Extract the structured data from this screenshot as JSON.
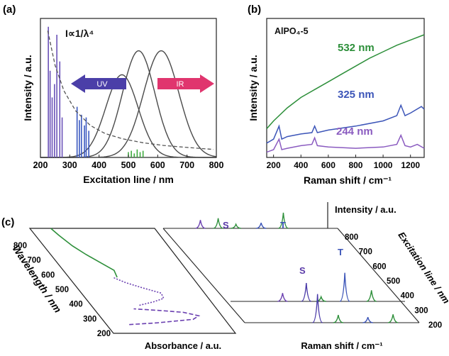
{
  "chart_data": [
    {
      "panel": "(a)",
      "type": "line",
      "xlabel": "Excitation line / nm",
      "ylabel": "Intensity / a.u.",
      "xlim": [
        200,
        800
      ],
      "xticks": [
        200,
        300,
        400,
        500,
        600,
        700,
        800
      ],
      "annotations": {
        "formula": "I∝1/λ⁴",
        "uv": "UV",
        "ir": "IR"
      },
      "dashed_curve": {
        "x": [
          225,
          250,
          280,
          320,
          370,
          420,
          480,
          550,
          620,
          700,
          790
        ],
        "y": [
          0.95,
          0.69,
          0.5,
          0.35,
          0.24,
          0.18,
          0.14,
          0.11,
          0.09,
          0.075,
          0.06
        ]
      },
      "gaussian_bands": [
        {
          "center": 478,
          "width": 55,
          "height": 0.62
        },
        {
          "center": 535,
          "width": 55,
          "height": 0.8
        },
        {
          "center": 612,
          "width": 60,
          "height": 0.8
        }
      ],
      "spectral_lines": [
        {
          "x": 227,
          "h": 0.98,
          "color": "#6a52b8"
        },
        {
          "x": 233,
          "h": 0.65,
          "color": "#6a52b8"
        },
        {
          "x": 240,
          "h": 0.45,
          "color": "#6a52b8"
        },
        {
          "x": 248,
          "h": 0.55,
          "color": "#6a52b8"
        },
        {
          "x": 256,
          "h": 0.92,
          "color": "#6a52b8"
        },
        {
          "x": 266,
          "h": 0.72,
          "color": "#6a52b8"
        },
        {
          "x": 274,
          "h": 0.3,
          "color": "#6a52b8"
        },
        {
          "x": 325,
          "h": 0.38,
          "color": "#3a58c0"
        },
        {
          "x": 333,
          "h": 0.28,
          "color": "#3a58c0"
        },
        {
          "x": 340,
          "h": 0.32,
          "color": "#3a58c0"
        },
        {
          "x": 350,
          "h": 0.24,
          "color": "#3a58c0"
        },
        {
          "x": 356,
          "h": 0.3,
          "color": "#3a58c0"
        },
        {
          "x": 365,
          "h": 0.2,
          "color": "#3a58c0"
        },
        {
          "x": 500,
          "h": 0.04,
          "color": "#3faa3f"
        },
        {
          "x": 510,
          "h": 0.05,
          "color": "#3faa3f"
        },
        {
          "x": 520,
          "h": 0.03,
          "color": "#3faa3f"
        },
        {
          "x": 530,
          "h": 0.06,
          "color": "#3faa3f"
        },
        {
          "x": 540,
          "h": 0.04,
          "color": "#3faa3f"
        },
        {
          "x": 550,
          "h": 0.05,
          "color": "#3faa3f"
        }
      ]
    },
    {
      "panel": "(b)",
      "type": "line",
      "xlabel": "Raman shift / cm⁻¹",
      "ylabel": "Intensity / a.u.",
      "xlim": [
        150,
        1300
      ],
      "xticks": [
        200,
        400,
        600,
        800,
        1000,
        1200
      ],
      "annotation": "AlPO₄-5",
      "series": [
        {
          "name": "532 nm",
          "color": "#2d8f3a",
          "x": [
            150,
            200,
            300,
            400,
            500,
            600,
            700,
            800,
            900,
            1000,
            1100,
            1200,
            1300
          ],
          "y": [
            0.22,
            0.28,
            0.38,
            0.46,
            0.52,
            0.58,
            0.64,
            0.7,
            0.76,
            0.81,
            0.86,
            0.9,
            0.94
          ]
        },
        {
          "name": "325 nm",
          "color": "#3c55b8",
          "x": [
            150,
            200,
            240,
            260,
            300,
            400,
            480,
            500,
            520,
            600,
            800,
            1000,
            1100,
            1130,
            1160,
            1200,
            1280,
            1300
          ],
          "y": [
            0.11,
            0.14,
            0.24,
            0.14,
            0.16,
            0.18,
            0.19,
            0.24,
            0.19,
            0.21,
            0.24,
            0.28,
            0.32,
            0.4,
            0.32,
            0.34,
            0.39,
            0.37
          ]
        },
        {
          "name": "244 nm",
          "color": "#8a5bc0",
          "x": [
            150,
            200,
            240,
            260,
            300,
            400,
            480,
            500,
            520,
            600,
            800,
            1000,
            1100,
            1130,
            1160,
            1200,
            1250,
            1300
          ],
          "y": [
            0.04,
            0.06,
            0.14,
            0.06,
            0.07,
            0.09,
            0.1,
            0.15,
            0.09,
            0.08,
            0.07,
            0.08,
            0.1,
            0.17,
            0.09,
            0.08,
            0.1,
            0.07
          ]
        }
      ]
    },
    {
      "panel": "(c)",
      "type": "line",
      "left_axis": {
        "label": "Wavelength / nm",
        "ticks": [
          "800",
          "700",
          "600",
          "500",
          "400",
          "300",
          "200"
        ],
        "bottom_label": "Absorbance / a.u."
      },
      "right_axis": {
        "label": "Excitation line / nm",
        "ticks": [
          "800",
          "700",
          "600",
          "500",
          "400",
          "300",
          "200"
        ],
        "bottom_label": "Raman shift / cm⁻¹",
        "top_label": "Intensity / a.u."
      },
      "band_labels": [
        "S",
        "T",
        "S",
        "T"
      ],
      "absorbance_curves": [
        {
          "name": "S",
          "style": "dashed",
          "color": "#6a3fb0",
          "wavelength": [
            250,
            260,
            280,
            300,
            320,
            330,
            340
          ],
          "absorbance": [
            0.05,
            0.4,
            0.85,
            0.95,
            0.8,
            0.55,
            0.25
          ]
        },
        {
          "name": "T",
          "style": "dotted",
          "color": "#6a3fb0",
          "wavelength": [
            360,
            380,
            400,
            430,
            460,
            490,
            520
          ],
          "absorbance": [
            0.35,
            0.55,
            0.7,
            0.72,
            0.55,
            0.4,
            0.3
          ]
        },
        {
          "name": "green",
          "style": "solid",
          "color": "#2d8f3a",
          "wavelength": [
            520,
            560,
            600,
            650,
            700,
            760,
            800
          ],
          "absorbance": [
            0.35,
            0.38,
            0.3,
            0.2,
            0.12,
            0.06,
            0.03
          ]
        }
      ],
      "raman_rows": [
        {
          "excitation": 800,
          "peaks": [
            {
              "pos": 0.06,
              "h": 0.45,
              "color": "#6a3fb0"
            },
            {
              "pos": 0.18,
              "h": 0.55,
              "color": "#2d8f3a"
            },
            {
              "pos": 0.3,
              "h": 0.22,
              "color": "#2d8f3a"
            },
            {
              "pos": 0.47,
              "h": 0.3,
              "color": "#3c55b8"
            },
            {
              "pos": 0.62,
              "h": 0.85,
              "color": "#2d8f3a"
            }
          ]
        },
        {
          "excitation": 430,
          "peaks": [
            {
              "pos": 0.16,
              "h": 0.45,
              "color": "#6a3fb0"
            },
            {
              "pos": 0.32,
              "h": 1.0,
              "color": "#4a3aa8"
            },
            {
              "pos": 0.42,
              "h": 0.25,
              "color": "#2d8f3a"
            },
            {
              "pos": 0.58,
              "h": 1.55,
              "color": "#3c55b8"
            },
            {
              "pos": 0.76,
              "h": 0.6,
              "color": "#2d8f3a"
            }
          ]
        },
        {
          "excitation": 230,
          "peaks": [
            {
              "pos": 0.3,
              "h": 1.55,
              "color": "#4a3aa8"
            },
            {
              "pos": 0.44,
              "h": 0.42,
              "color": "#2d8f3a"
            },
            {
              "pos": 0.64,
              "h": 0.3,
              "color": "#3c55b8"
            },
            {
              "pos": 0.81,
              "h": 0.45,
              "color": "#2d8f3a"
            }
          ]
        }
      ]
    }
  ]
}
